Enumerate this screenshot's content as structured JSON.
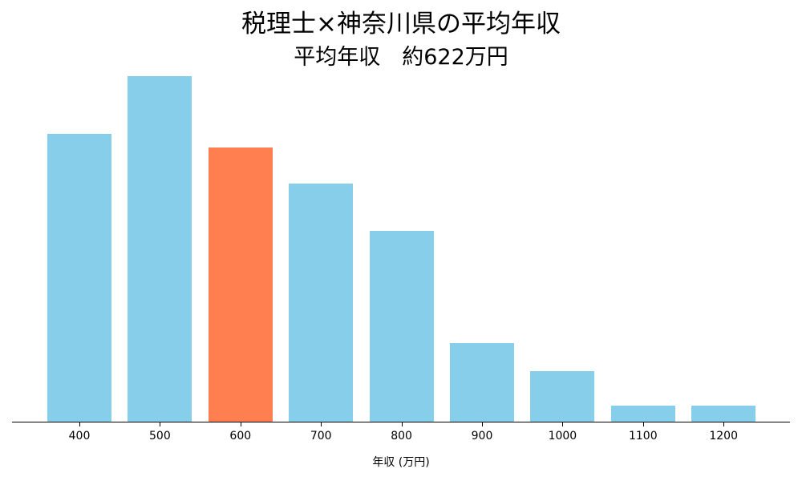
{
  "chart_data": {
    "type": "bar",
    "title": "税理士×神奈川県の平均年収",
    "subtitle": "平均年収　約622万円",
    "xlabel": "年収 (万円)",
    "ylabel": "",
    "y_axis_shown": false,
    "value_kind": "relative bar height (no y-axis scale shown; tallest bar = 100)",
    "grid": false,
    "categories": [
      "400",
      "500",
      "600",
      "700",
      "800",
      "900",
      "1000",
      "1100",
      "1200"
    ],
    "values": [
      83.3,
      100,
      79.4,
      68.9,
      55.2,
      22.7,
      14.6,
      4.6,
      4.6
    ],
    "highlight_category": "600",
    "colors": {
      "default": "#87ceeb",
      "highlight": "#ff7f50"
    }
  }
}
